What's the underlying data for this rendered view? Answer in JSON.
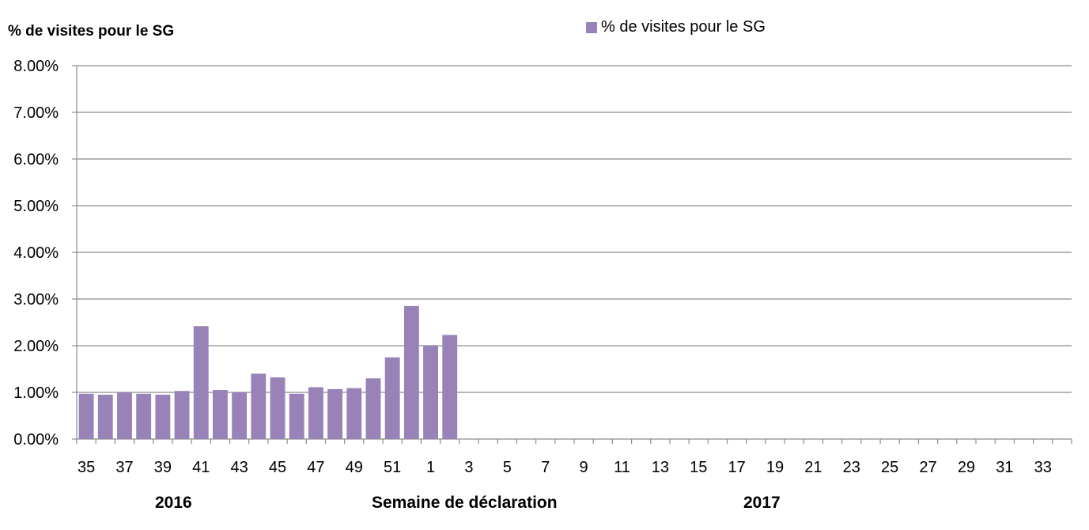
{
  "chart_data": {
    "type": "bar",
    "ylabel": "% de visites pour le SG",
    "xlabel": "Semaine de déclaration",
    "year_labels": [
      "2016",
      "2017"
    ],
    "legend": {
      "placement": "top-center",
      "entries": [
        "% de visites pour le SG"
      ]
    },
    "ylim": [
      0,
      0.08
    ],
    "yticks": [
      "0.00%",
      "1.00%",
      "2.00%",
      "3.00%",
      "4.00%",
      "5.00%",
      "6.00%",
      "7.00%",
      "8.00%"
    ],
    "grid": true,
    "bar_color": "#9982b7",
    "categories": [
      "35",
      "36",
      "37",
      "38",
      "39",
      "40",
      "41",
      "42",
      "43",
      "44",
      "45",
      "46",
      "47",
      "48",
      "49",
      "50",
      "51",
      "52",
      "1",
      "2",
      "3",
      "4",
      "5",
      "6",
      "7",
      "8",
      "9",
      "10",
      "11",
      "12",
      "13",
      "14",
      "15",
      "16",
      "17",
      "18",
      "19",
      "20",
      "21",
      "22",
      "23",
      "24",
      "25",
      "26",
      "27",
      "28",
      "29",
      "30",
      "31",
      "32",
      "33",
      "34"
    ],
    "tick_labels": [
      "35",
      "37",
      "39",
      "41",
      "43",
      "45",
      "47",
      "49",
      "51",
      "1",
      "3",
      "5",
      "7",
      "9",
      "11",
      "13",
      "15",
      "17",
      "19",
      "21",
      "23",
      "25",
      "27",
      "29",
      "31",
      "33"
    ],
    "series": [
      {
        "name": "% de visites pour le SG",
        "values": [
          0.0097,
          0.0095,
          0.01,
          0.0097,
          0.0095,
          0.0103,
          0.0242,
          0.0105,
          0.01,
          0.014,
          0.0132,
          0.0097,
          0.0111,
          0.0107,
          0.0109,
          0.013,
          0.0175,
          0.0285,
          0.02,
          0.0223,
          null,
          null,
          null,
          null,
          null,
          null,
          null,
          null,
          null,
          null,
          null,
          null,
          null,
          null,
          null,
          null,
          null,
          null,
          null,
          null,
          null,
          null,
          null,
          null,
          null,
          null,
          null,
          null,
          null,
          null,
          null,
          null
        ]
      }
    ]
  }
}
